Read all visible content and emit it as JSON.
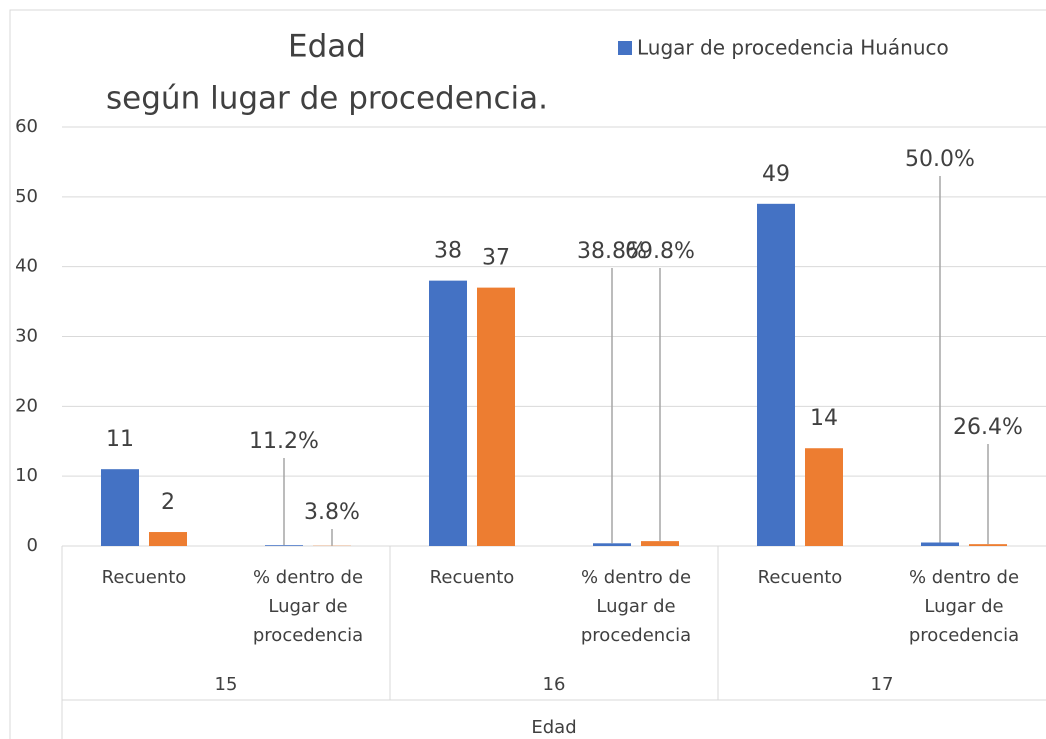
{
  "chart_data": {
    "type": "bar",
    "title": [
      "Edad",
      "según lugar de procedencia."
    ],
    "x_label": "Edad",
    "categories": [
      "Recuento",
      "% dentro de Lugar de procedencia",
      "Recuento",
      "% dentro de Lugar de procedencia",
      "Recuento",
      "% dentro de Lugar de procedencia"
    ],
    "groups": [
      "15",
      "16",
      "17"
    ],
    "series": [
      {
        "name": "Lugar de procedencia Huánuco",
        "color": "#4472c4",
        "values": [
          11,
          0.112,
          38,
          0.388,
          49,
          0.5
        ],
        "value_labels": [
          "11",
          "11.2%",
          "38",
          "38.8%",
          "49",
          "50.0%"
        ]
      },
      {
        "color": "#ed7d31",
        "values": [
          2,
          0.038,
          37,
          0.698,
          14,
          0.264
        ],
        "value_labels": [
          "2",
          "3.8%",
          "37",
          "69.8%",
          "14",
          "26.4%"
        ]
      }
    ],
    "ylim": [
      0,
      60
    ],
    "yticks": [
      0,
      10,
      20,
      30,
      40,
      50,
      60
    ],
    "grid": true,
    "legend": "top-right"
  }
}
